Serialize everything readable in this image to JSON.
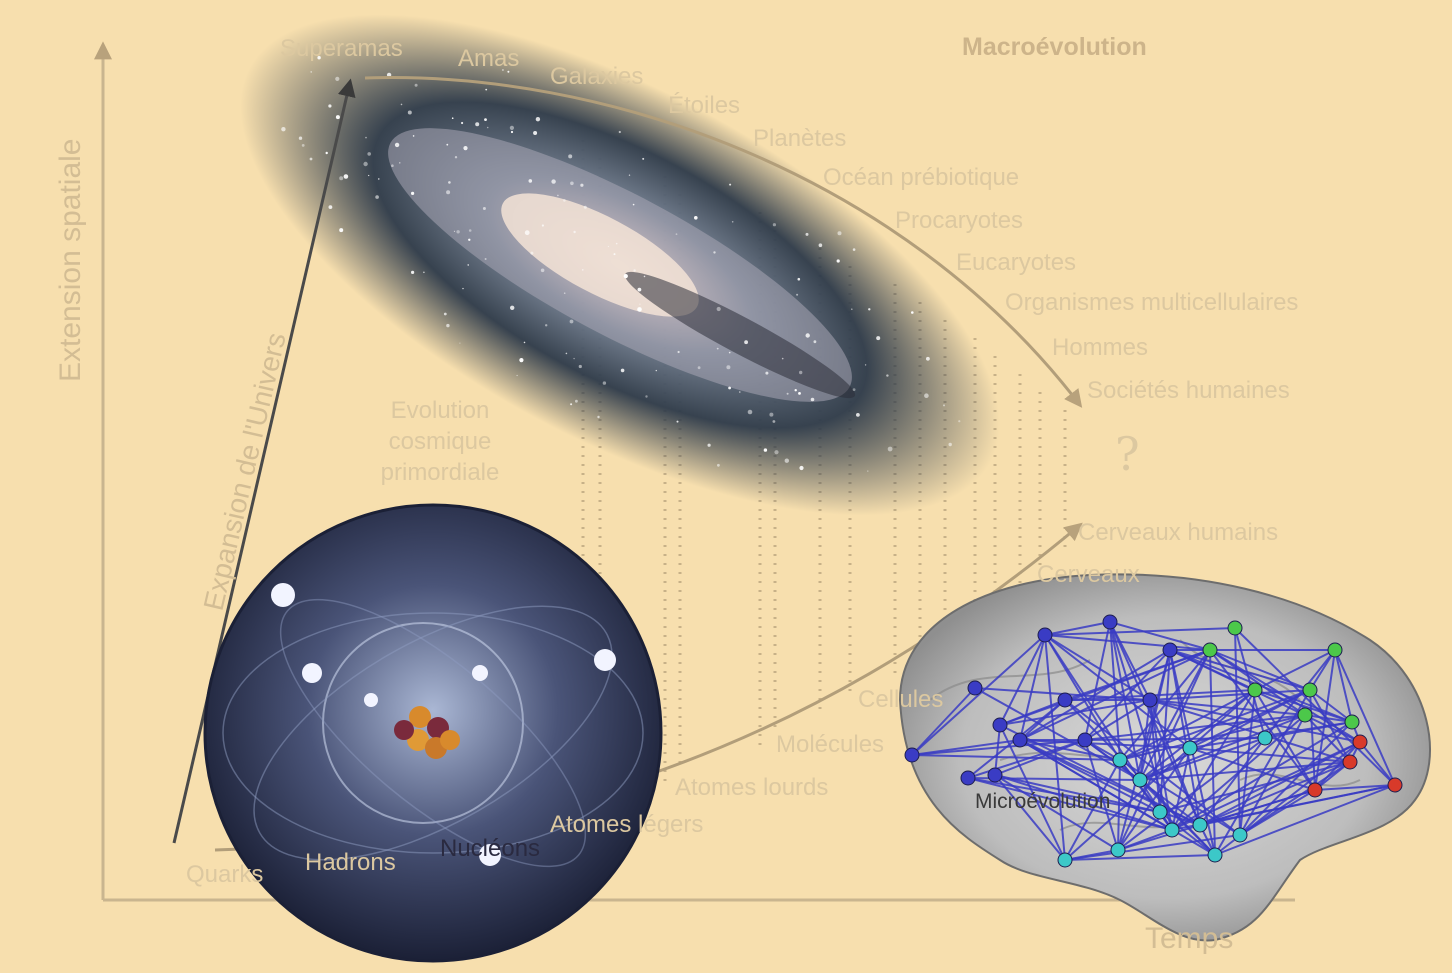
{
  "title": "Macroévolution",
  "axes": {
    "y_label": "Extension spatiale",
    "x_label": "Temps"
  },
  "expansion_label": "Expansion de l'Univers",
  "cosmic_evolution": [
    "Evolution",
    "cosmique",
    "primordiale"
  ],
  "upper_sequence": [
    "Superamas",
    "Amas",
    "Galaxies",
    "Étoiles",
    "Planètes",
    "Océan prébiotique",
    "Procaryotes",
    "Eucaryotes",
    "Organismes multicellulaires",
    "Hommes",
    "Sociétés humaines"
  ],
  "lower_sequence": [
    "Quarks",
    "Hadrons",
    "Atomes légers",
    "Atomes lourds",
    "Molécules",
    "Cellules",
    "Cerveaux",
    "Cerveaux humains"
  ],
  "question_mark": "?",
  "overlay_labels": {
    "nucleons": "Nucléons",
    "microevolution": "Microévolution"
  },
  "images": {
    "galaxy": "spiral-galaxy-image",
    "atom": "atom-model-image",
    "brain": "brain-network-image"
  },
  "colors": {
    "background": "#f7dfae",
    "label_faded": "#dcc8a0",
    "curve": "#b29e7a",
    "network_edge": "#3a3cc4",
    "node_green": "#4cc84a",
    "node_cyan": "#3cc8c8",
    "node_red": "#d83a2a",
    "node_blue": "#3a3cc4"
  }
}
